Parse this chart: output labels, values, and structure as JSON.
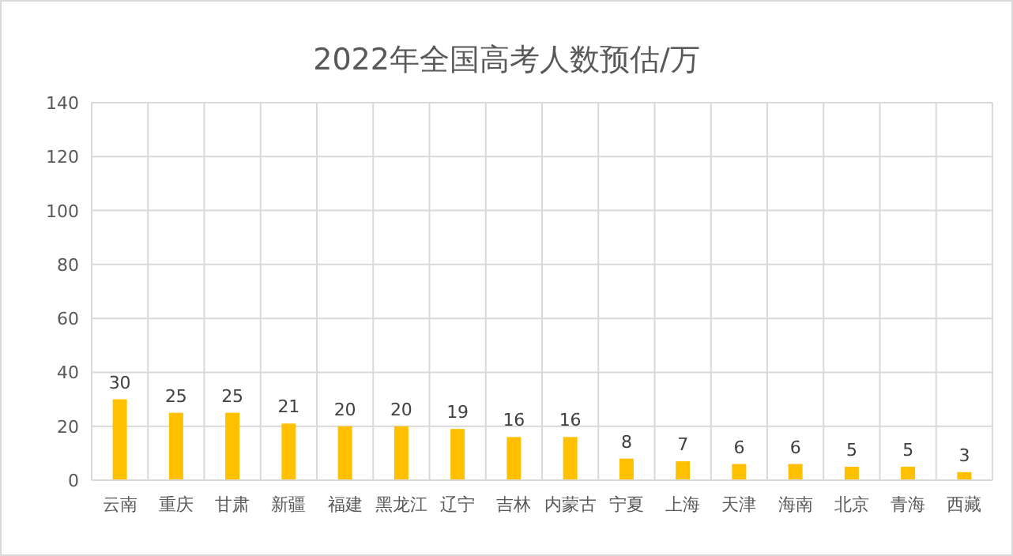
{
  "chart_data": {
    "type": "bar",
    "title": "2022年全国高考人数预估/万",
    "categories": [
      "云南",
      "重庆",
      "甘肃",
      "新疆",
      "福建",
      "黑龙江",
      "辽宁",
      "吉林",
      "内蒙古",
      "宁夏",
      "上海",
      "天津",
      "海南",
      "北京",
      "青海",
      "西藏"
    ],
    "values": [
      30,
      25,
      25,
      21,
      20,
      20,
      19,
      16,
      16,
      8,
      7,
      6,
      6,
      5,
      5,
      3
    ],
    "color": "#ffc000",
    "ylim": [
      0,
      140
    ],
    "yticks": [
      0,
      20,
      40,
      60,
      80,
      100,
      120,
      140
    ],
    "grid": true,
    "data_labels": true
  }
}
